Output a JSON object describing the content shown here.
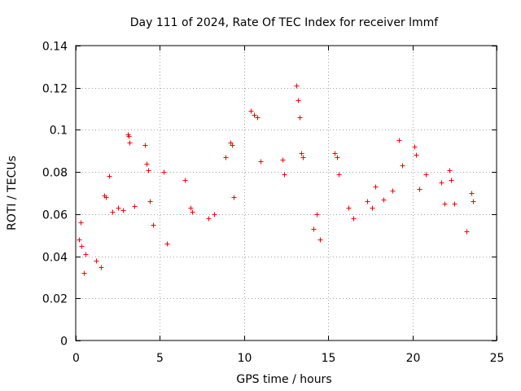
{
  "chart_data": {
    "type": "scatter",
    "title": "Day 111 of 2024, Rate Of TEC Index for receiver lmmf",
    "xlabel": "GPS time / hours",
    "ylabel": "ROTI / TECUs",
    "xlim": [
      0,
      25
    ],
    "ylim": [
      0,
      0.14
    ],
    "xticks": [
      0,
      5,
      10,
      15,
      20,
      25
    ],
    "xtick_labels": [
      "0",
      "5",
      "10",
      "15",
      "20",
      "25"
    ],
    "yticks": [
      0,
      0.02,
      0.04,
      0.06,
      0.08,
      0.1,
      0.12,
      0.14
    ],
    "ytick_labels": [
      "0",
      "0.02",
      "0.04",
      "0.06",
      "0.08",
      "0.1",
      "0.12",
      "0.14"
    ],
    "grid": true,
    "marker": "+",
    "color": "#ff0000",
    "data_gap_hours": [
      20.9,
      21.6
    ],
    "series": [
      {
        "name": "ROTI",
        "x": [
          0.2,
          0.3,
          0.35,
          0.5,
          0.6,
          1.2,
          1.5,
          1.7,
          1.8,
          2.0,
          2.2,
          2.5,
          2.8,
          3.1,
          3.15,
          3.2,
          3.5,
          4.1,
          4.2,
          4.3,
          4.4,
          4.6,
          5.2,
          5.4,
          6.5,
          6.8,
          6.9,
          7.9,
          8.2,
          8.9,
          9.2,
          9.3,
          9.4,
          10.4,
          10.6,
          10.8,
          11.0,
          12.3,
          12.4,
          13.1,
          13.2,
          13.3,
          13.4,
          13.5,
          14.1,
          14.3,
          14.5,
          15.4,
          15.5,
          15.6,
          16.2,
          16.5,
          17.3,
          17.6,
          17.8,
          18.3,
          18.8,
          19.2,
          19.4,
          20.1,
          20.2,
          20.4,
          20.8,
          21.7,
          21.9,
          22.2,
          22.3,
          22.5,
          23.2,
          23.5,
          23.6
        ],
        "y": [
          0.048,
          0.056,
          0.045,
          0.032,
          0.041,
          0.038,
          0.035,
          0.069,
          0.068,
          0.078,
          0.061,
          0.063,
          0.062,
          0.098,
          0.097,
          0.094,
          0.064,
          0.093,
          0.084,
          0.081,
          0.066,
          0.055,
          0.08,
          0.046,
          0.076,
          0.063,
          0.061,
          0.058,
          0.06,
          0.087,
          0.094,
          0.093,
          0.068,
          0.109,
          0.107,
          0.106,
          0.085,
          0.086,
          0.079,
          0.121,
          0.114,
          0.106,
          0.089,
          0.087,
          0.053,
          0.06,
          0.048,
          0.089,
          0.087,
          0.079,
          0.063,
          0.058,
          0.066,
          0.063,
          0.073,
          0.067,
          0.071,
          0.095,
          0.083,
          0.092,
          0.088,
          0.072,
          0.079,
          0.075,
          0.065,
          0.081,
          0.076,
          0.065,
          0.052,
          0.07,
          0.066
        ]
      }
    ]
  }
}
